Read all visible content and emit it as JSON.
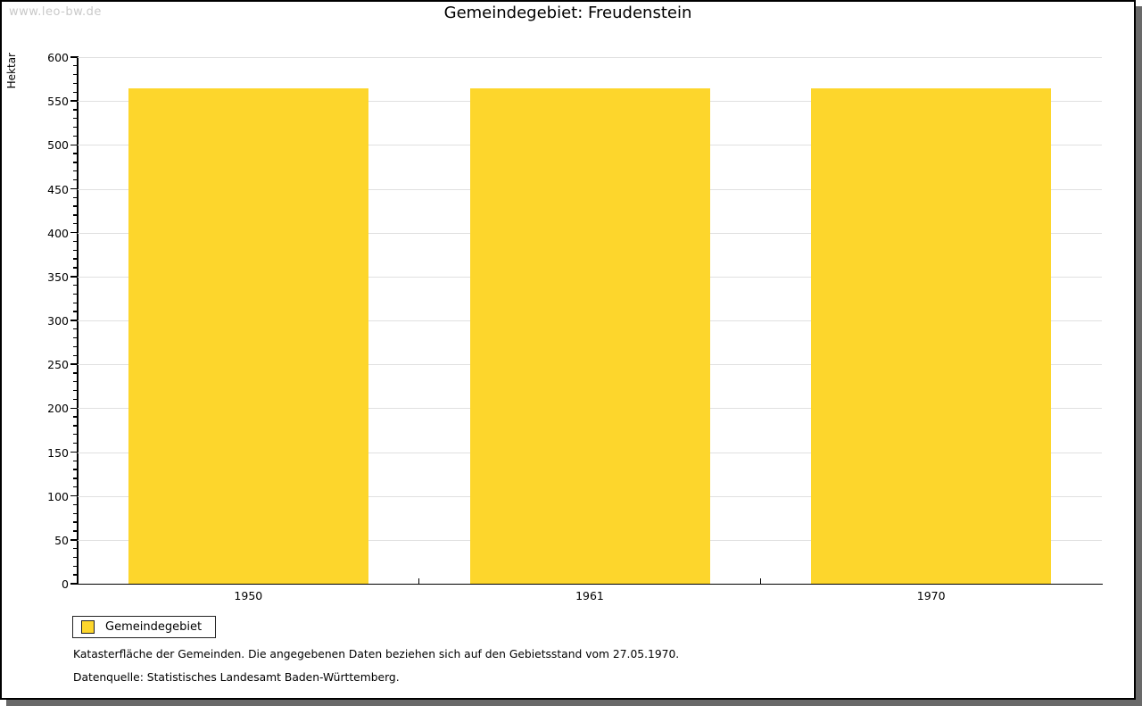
{
  "watermark": "www.leo-bw.de",
  "chart_data": {
    "type": "bar",
    "title": "Gemeindegebiet: Freudenstein",
    "xlabel": "",
    "ylabel": "Hektar",
    "categories": [
      "1950",
      "1961",
      "1970"
    ],
    "series": [
      {
        "name": "Gemeindegebiet",
        "values": [
          564,
          564,
          564
        ]
      }
    ],
    "ylim": [
      0,
      600
    ],
    "y_ticks": [
      0,
      50,
      100,
      150,
      200,
      250,
      300,
      350,
      400,
      450,
      500,
      550,
      600
    ],
    "y_minor_step": 10,
    "grid": "horizontal-major",
    "legend_position": "bottom-left",
    "legend_entries": [
      "Gemeindegebiet"
    ]
  },
  "legend": {
    "label": "Gemeindegebiet"
  },
  "captions": [
    "Katasterfläche der Gemeinden. Die angegebenen Daten beziehen sich auf den Gebietsstand vom 27.05.1970.",
    "Datenquelle: Statistisches Landesamt Baden-Württemberg."
  ],
  "colors": {
    "bar": "#FDD62C",
    "grid": "#E0E0E0",
    "axis": "#000000",
    "watermark": "#C9C9C9",
    "shadow": "#696969"
  }
}
